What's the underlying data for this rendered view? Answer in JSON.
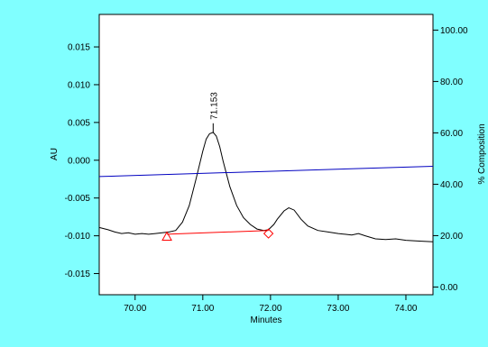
{
  "colors": {
    "background": "#80FFFF",
    "plot_area": "#FFFFFF",
    "trace": "#000000",
    "composition_line": "#0000C0",
    "baseline": "#FF0000"
  },
  "chart_data": {
    "type": "line",
    "title": "",
    "xlabel": "Minutes",
    "ylabel": "AU",
    "y2label": "% Composition",
    "xlim": [
      69.47,
      74.4
    ],
    "ylim": [
      -0.0178,
      0.0193
    ],
    "y2lim": [
      -3.0,
      106.1
    ],
    "grid": false,
    "legend": "none",
    "x_ticks": [
      "70.00",
      "71.00",
      "72.00",
      "73.00",
      "74.00"
    ],
    "y_ticks": [
      "-0.015",
      "-0.010",
      "-0.005",
      "0.000",
      "0.005",
      "0.010",
      "0.015"
    ],
    "y2_ticks": [
      "0.00",
      "20.00",
      "40.00",
      "60.00",
      "80.00",
      "100.00"
    ],
    "peak_label": "71.153",
    "peak": {
      "x": 71.153,
      "y": 0.0037
    },
    "series": [
      {
        "role": "trace",
        "x": [
          69.47,
          69.6,
          69.7,
          69.8,
          69.9,
          70.0,
          70.1,
          70.2,
          70.3,
          70.4,
          70.5,
          70.6,
          70.7,
          70.8,
          70.9,
          71.0,
          71.05,
          71.1,
          71.153,
          71.2,
          71.25,
          71.3,
          71.4,
          71.5,
          71.6,
          71.7,
          71.8,
          71.9,
          71.97,
          72.05,
          72.1,
          72.2,
          72.27,
          72.35,
          72.45,
          72.55,
          72.7,
          72.85,
          73.0,
          73.1,
          73.2,
          73.3,
          73.4,
          73.55,
          73.7,
          73.85,
          74.0,
          74.2,
          74.4
        ],
        "y": [
          -0.0089,
          -0.0092,
          -0.0095,
          -0.0097,
          -0.0096,
          -0.0098,
          -0.0097,
          -0.0098,
          -0.0097,
          -0.0096,
          -0.0095,
          -0.0093,
          -0.0082,
          -0.006,
          -0.0025,
          0.0012,
          0.0028,
          0.0035,
          0.0037,
          0.0032,
          0.0018,
          -0.0001,
          -0.0035,
          -0.006,
          -0.0076,
          -0.0085,
          -0.0091,
          -0.0093,
          -0.0092,
          -0.0085,
          -0.0078,
          -0.0067,
          -0.0063,
          -0.0066,
          -0.0078,
          -0.0087,
          -0.0093,
          -0.0095,
          -0.0097,
          -0.0098,
          -0.0099,
          -0.0097,
          -0.01,
          -0.0104,
          -0.0105,
          -0.0104,
          -0.0106,
          -0.0107,
          -0.0108
        ]
      },
      {
        "role": "composition",
        "axis": "right",
        "x": [
          69.47,
          74.4
        ],
        "y": [
          43.0,
          47.0
        ]
      },
      {
        "role": "baseline",
        "x": [
          70.47,
          71.97
        ],
        "y": [
          -0.0098,
          -0.0093
        ]
      }
    ],
    "markers": [
      {
        "shape": "triangle",
        "x": 70.47,
        "y": -0.0101
      },
      {
        "shape": "diamond",
        "x": 71.97,
        "y": -0.0097
      }
    ]
  }
}
